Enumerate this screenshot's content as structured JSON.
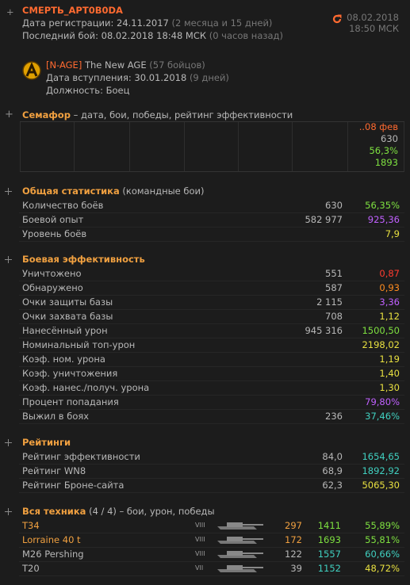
{
  "header": {
    "name": "СМЕРТЬ_АРТ0В0DA",
    "registered": "Дата регистрации: 24.11.2017",
    "registered_ago": "(2 месяца и 15 дней)",
    "last_battle": "Последний бой: 08.02.2018 18:48 МСК",
    "last_battle_ago": "(0 часов назад)",
    "date": "08.02.2018",
    "time": "18:50 МСК"
  },
  "clan": {
    "tag": "[N-AGE]",
    "name": "The New AGE",
    "members": "(57 бойцов)",
    "joined": "Дата вступления: 30.01.2018",
    "joined_ago": "(9 дней)",
    "position": "Должность: Боец"
  },
  "semafor": {
    "title": "Семафор",
    "description": "– дата, бои, победы, рейтинг эффективности",
    "last": [
      "..08 фев",
      "630",
      "56,3%",
      "1893"
    ],
    "last_colors": [
      "#ff6a30",
      "#b8b8b8",
      "#7ee040",
      "#7ee040"
    ]
  },
  "sections": [
    {
      "title": "Общая статистика",
      "subtitle": "(командные бои)",
      "rows": [
        [
          "Количество боёв",
          "630",
          "56,35%",
          "#7ee040"
        ],
        [
          "Боевой опыт",
          "582 977",
          "925,36",
          "#c060ff"
        ],
        [
          "Уровень боёв",
          null,
          "7,9",
          "#e8e040"
        ]
      ]
    },
    {
      "title": "Боевая эффективность",
      "subtitle": null,
      "rows": [
        [
          "Уничтожено",
          "551",
          "0,87",
          "#ff3c30"
        ],
        [
          "Обнаружено",
          "587",
          "0,93",
          "#ff8c20"
        ],
        [
          "Очки защиты базы",
          "2 115",
          "3,36",
          "#c060ff"
        ],
        [
          "Очки захвата базы",
          "708",
          "1,12",
          "#e8e040"
        ],
        [
          "Нанесённый урон",
          "945 316",
          "1500,50",
          "#7ee040"
        ],
        [
          "Номинальный топ-урон",
          null,
          "2198,02",
          "#e8e040"
        ],
        [
          "Коэф. ном. урона",
          null,
          "1,19",
          "#e8e040"
        ],
        [
          "Коэф. уничтожения",
          null,
          "1,40",
          "#e8e040"
        ],
        [
          "Коэф. нанес./получ. урона",
          null,
          "1,30",
          "#e8e040"
        ],
        [
          "Процент попадания",
          null,
          "79,80%",
          "#c060ff"
        ],
        [
          "Выжил в боях",
          "236",
          "37,46%",
          "#40d0c0"
        ]
      ]
    },
    {
      "title": "Рейтинги",
      "subtitle": null,
      "rows": [
        [
          "Рейтинг эффективности",
          "84,0",
          "1654,65",
          "#40d0c0"
        ],
        [
          "Рейтинг WN8",
          "68,9",
          "1892,92",
          "#40d0c0"
        ],
        [
          "Рейтинг Броне-сайта",
          "62,3",
          "5065,30",
          "#e8e040"
        ]
      ]
    }
  ],
  "vehicles": {
    "title": "Вся техника",
    "count": "(4 / 4)",
    "description": "– бои, урон, победы",
    "rows": [
      {
        "name": "T34",
        "name_color": "#f0a040",
        "tier": "VIII",
        "battles": "297",
        "battles_color": "#f0a040",
        "damage": "1411",
        "damage_color": "#7ee040",
        "wins": "55,89%",
        "wins_color": "#7ee040"
      },
      {
        "name": "Lorraine 40 t",
        "name_color": "#f0a040",
        "tier": "VIII",
        "battles": "172",
        "battles_color": "#f0a040",
        "damage": "1693",
        "damage_color": "#7ee040",
        "wins": "55,81%",
        "wins_color": "#7ee040"
      },
      {
        "name": "M26 Pershing",
        "name_color": "#b8b8b8",
        "tier": "VIII",
        "battles": "122",
        "battles_color": "#b8b8b8",
        "damage": "1557",
        "damage_color": "#40d0c0",
        "wins": "60,66%",
        "wins_color": "#40d0c0"
      },
      {
        "name": "T20",
        "name_color": "#b8b8b8",
        "tier": "VII",
        "battles": "39",
        "battles_color": "#b8b8b8",
        "damage": "1152",
        "damage_color": "#40d0c0",
        "wins": "48,72%",
        "wins_color": "#e8e040"
      }
    ]
  }
}
